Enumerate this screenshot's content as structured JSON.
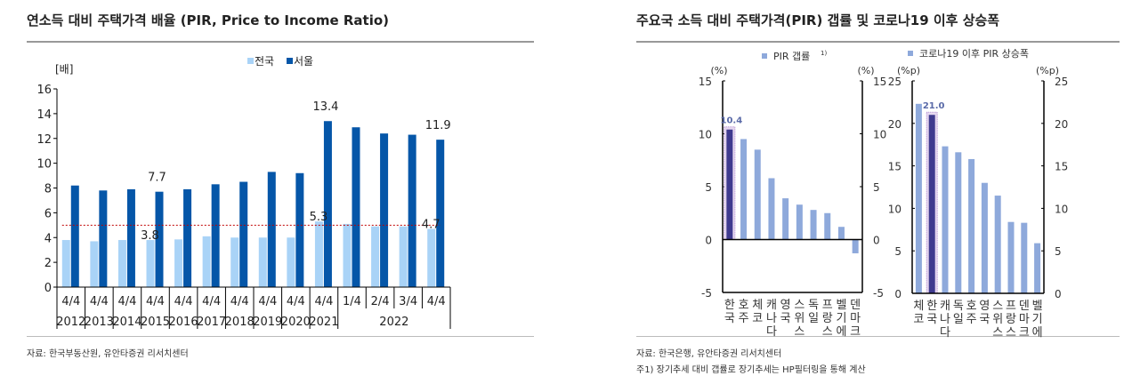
{
  "left": {
    "title": "연소득 대비 주택가격 배율 (PIR, Price to Income Ratio)",
    "source": "자료: 한국부동산원, 유안타증권 리서치센터"
  },
  "right": {
    "title": "주요국 소득 대비 주택가격(PIR) 갭률 및 코로나19 이후 상승폭",
    "source": "자료: 한국은행, 유안타증권 리서치센터",
    "note": "주1) 장기추세 대비 갭률로 장기추세는 HP필터링을 통해 계산"
  },
  "chart_data": [
    {
      "type": "bar",
      "unit": "[배]",
      "ylim": [
        0,
        16
      ],
      "yticks": [
        0,
        2,
        4,
        6,
        8,
        10,
        12,
        14,
        16
      ],
      "categories": [
        "4/4",
        "4/4",
        "4/4",
        "4/4",
        "4/4",
        "4/4",
        "4/4",
        "4/4",
        "4/4",
        "4/4",
        "1/4",
        "2/4",
        "3/4",
        "4/4"
      ],
      "years": [
        {
          "label": "2012",
          "span": 1
        },
        {
          "label": "2013",
          "span": 1
        },
        {
          "label": "2014",
          "span": 1
        },
        {
          "label": "2015",
          "span": 1
        },
        {
          "label": "2016",
          "span": 1
        },
        {
          "label": "2017",
          "span": 1
        },
        {
          "label": "2018",
          "span": 1
        },
        {
          "label": "2019",
          "span": 1
        },
        {
          "label": "2020",
          "span": 1
        },
        {
          "label": "2021",
          "span": 1
        },
        {
          "label": "2022",
          "span": 4
        }
      ],
      "series": [
        {
          "name": "전국",
          "color": "#a9d3f7",
          "values": [
            3.8,
            3.7,
            3.8,
            3.8,
            3.85,
            4.1,
            4.0,
            4.0,
            4.0,
            5.3,
            5.1,
            4.9,
            4.9,
            4.7
          ]
        },
        {
          "name": "서울",
          "color": "#0556a8",
          "values": [
            8.2,
            7.8,
            7.9,
            7.7,
            7.9,
            8.3,
            8.5,
            9.3,
            9.2,
            13.4,
            12.9,
            12.4,
            12.3,
            11.9
          ]
        }
      ],
      "data_labels": [
        {
          "series": 1,
          "index": 3,
          "text": "7.7"
        },
        {
          "series": 0,
          "index": 3,
          "text": "3.8"
        },
        {
          "series": 1,
          "index": 9,
          "text": "13.4"
        },
        {
          "series": 0,
          "index": 9,
          "text": "5.3"
        },
        {
          "series": 1,
          "index": 13,
          "text": "11.9"
        },
        {
          "series": 0,
          "index": 13,
          "text": "4.7"
        }
      ],
      "reference_line": {
        "y": 5,
        "color": "#c00000",
        "style": "dotted"
      },
      "legend": "top"
    },
    {
      "type": "bar",
      "legend": "PIR 갭률",
      "legend_sup": "1)",
      "unit_left": "(%)",
      "unit_right": "(%)",
      "ylim": [
        -5,
        15
      ],
      "yticks": [
        -5,
        0,
        5,
        10,
        15
      ],
      "categories": [
        "한국",
        "호주",
        "체코",
        "캐나다",
        "영국",
        "스위스",
        "독일",
        "프랑스",
        "벨기에",
        "덴마크"
      ],
      "values": [
        10.4,
        9.5,
        8.5,
        5.8,
        3.9,
        3.3,
        2.8,
        2.5,
        1.2,
        -1.3
      ],
      "highlight": {
        "index": 0,
        "text": "10.4",
        "color": "#3f3a8f"
      },
      "color": "#8ea9db"
    },
    {
      "type": "bar",
      "legend": "코로나19 이후 PIR 상승폭",
      "unit_left": "(%p)",
      "unit_right": "(%p)",
      "ylim": [
        0,
        25
      ],
      "yticks": [
        0,
        5,
        10,
        15,
        20,
        25
      ],
      "categories": [
        "체코",
        "한국",
        "캐나다",
        "독일",
        "호주",
        "영국",
        "스위스",
        "프랑스",
        "덴마크",
        "벨기에"
      ],
      "values": [
        22.3,
        21.0,
        17.3,
        16.6,
        15.8,
        13.0,
        11.5,
        8.4,
        8.3,
        5.9
      ],
      "highlight": {
        "index": 1,
        "text": "21.0",
        "color": "#3f3a8f"
      },
      "color": "#8ea9db"
    }
  ]
}
